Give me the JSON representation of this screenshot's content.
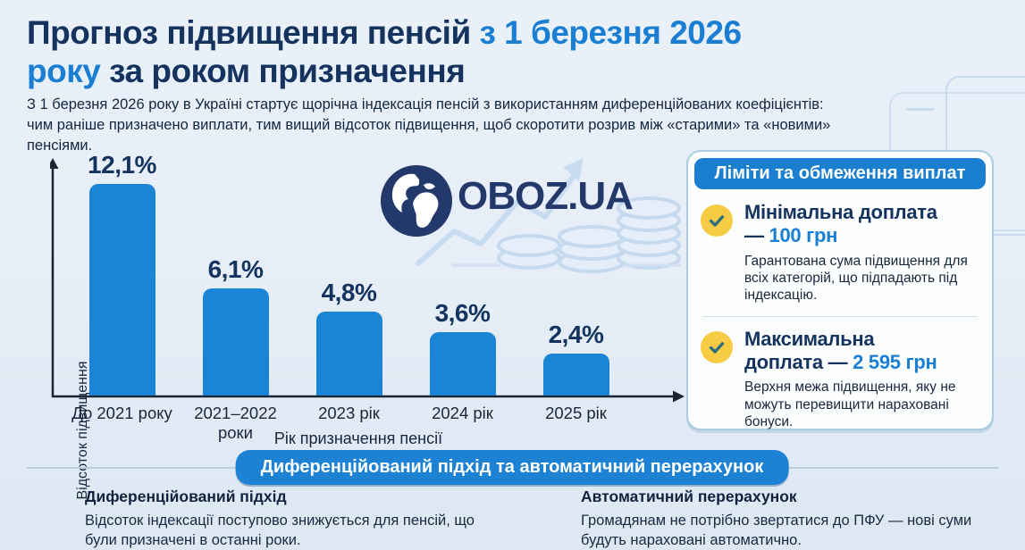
{
  "header": {
    "title_line1_dark": "Прогноз підвищення пенсій",
    "title_line1_blue": "з 1 березня 2026",
    "title_line2_blue": "року",
    "title_line2_dark": "за роком призначення",
    "subtitle_line1": "З 1 березня 2026 року в Україні стартує щорічна індексація пенсій з використанням диференційованих коефіцієнтів:",
    "subtitle_line2": "чим раніше призначено виплати, тим вищий відсоток підвищення, щоб скоротити розрив між «старими» та «новими» пенсіями."
  },
  "chart_data": {
    "type": "bar",
    "categories": [
      "До 2021 року",
      "2021–2022 роки",
      "2023 рік",
      "2024 рік",
      "2025 рік"
    ],
    "values": [
      12.1,
      6.1,
      4.8,
      3.6,
      2.4
    ],
    "value_labels": [
      "12,1%",
      "6,1%",
      "4,8%",
      "3,6%",
      "2,4%"
    ],
    "xlabel": "Рік призначення пенсії",
    "ylabel": "Відсоток підвищення",
    "ylim": [
      0,
      13
    ],
    "grid": false,
    "legend": "none",
    "bar_color": "#1a84d6"
  },
  "logo": {
    "text": "OBOZ.UA"
  },
  "limits_panel": {
    "header": "Ліміти та обмеження виплат",
    "items": [
      {
        "title_line1": "Мінімальна доплата",
        "title_line2_dark": "—",
        "amount": "100 грн",
        "description": "Гарантована сума підвищення для всіх категорій, що підпадають під індексацію."
      },
      {
        "title_line1": "Максимальна",
        "title_line2_dark": "доплата —",
        "amount": "2 595 грн",
        "description": "Верхня межа підвищення, яку не можуть перевищити нараховані бонуси."
      }
    ]
  },
  "bottom": {
    "banner": "Диференційований підхід та автоматичний перерахунок",
    "columns": [
      {
        "heading": "Диференційований підхід",
        "text": "Відсоток індексації поступово знижується для пенсій, що були призначені в останні роки."
      },
      {
        "heading": "Автоматичний перерахунок",
        "text": "Громадянам не потрібно звертатися до ПФУ — нові суми будуть нараховані автоматично."
      }
    ]
  },
  "colors": {
    "navy": "#14335e",
    "accent_blue": "#1a7fd2",
    "bar_blue": "#1a84d6",
    "panel_header_blue": "#1b7fd1",
    "banner_blue": "#1e82d4",
    "check_yellow": "#f7cc45",
    "check_stroke": "#2a6e7e",
    "decoration_light_blue": "#c6dbef",
    "background_top": "#e9f0f8",
    "background_bottom": "#dde8f3"
  }
}
